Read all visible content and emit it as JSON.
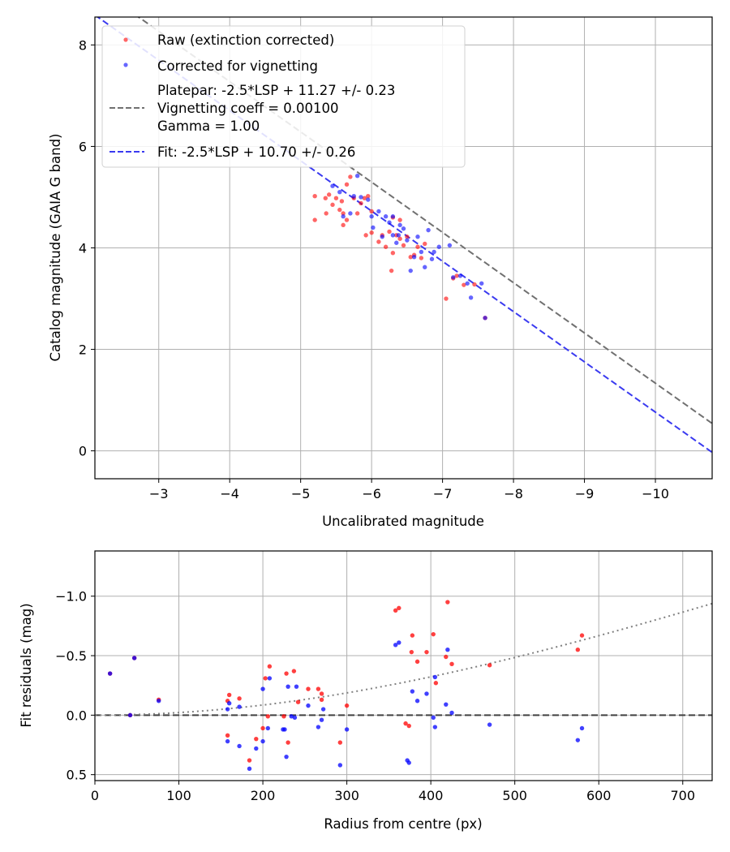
{
  "figure": "vignetting-photometry-fit",
  "chart_data": [
    {
      "type": "scatter",
      "name": "photometry",
      "xlabel": "Uncalibrated magnitude",
      "ylabel": "Catalog magnitude (GAIA G band)",
      "xlim": [
        -2.1,
        -10.8
      ],
      "ylim": [
        8.55,
        -0.55
      ],
      "xticks": [
        -3,
        -4,
        -5,
        -6,
        -7,
        -8,
        -9,
        -10
      ],
      "xtick_labels": [
        "−3",
        "−4",
        "−5",
        "−6",
        "−7",
        "−8",
        "−9",
        "−10"
      ],
      "yticks": [
        0,
        2,
        4,
        6,
        8
      ],
      "ytick_labels": [
        "0",
        "2",
        "4",
        "6",
        "8"
      ],
      "grid": true,
      "legend_position": "top-left",
      "legend": [
        {
          "label": "Raw (extinction corrected)",
          "kind": "marker",
          "color": "#ff0000"
        },
        {
          "label": "Corrected for vignetting",
          "kind": "marker",
          "color": "#0000ff"
        },
        {
          "label": "Platepar: -2.5*LSP + 11.27 +/- 0.23",
          "kind": "text-line"
        },
        {
          "label": "Vignetting coeff = 0.00100",
          "kind": "dashed",
          "color": "#707070"
        },
        {
          "label": "Gamma = 1.00",
          "kind": "text-line"
        },
        {
          "label": "Fit: -2.5*LSP + 10.70 +/- 0.26",
          "kind": "dashed",
          "color": "#3a3af0"
        }
      ],
      "lines": [
        {
          "name": "platepar-line",
          "color": "#707070",
          "style": "dashed",
          "x": [
            -2.1,
            -10.8
          ],
          "y": [
            9.16,
            0.54
          ]
        },
        {
          "name": "fit-line",
          "color": "#3a3af0",
          "style": "dashed",
          "x": [
            -2.1,
            -10.8
          ],
          "y": [
            8.59,
            -0.03
          ]
        }
      ],
      "series": [
        {
          "name": "Raw (extinction corrected)",
          "color": "#ff0000",
          "points": [
            [
              -5.2,
              4.55
            ],
            [
              -5.2,
              5.02
            ],
            [
              -5.35,
              4.98
            ],
            [
              -5.36,
              4.68
            ],
            [
              -5.4,
              5.05
            ],
            [
              -5.45,
              4.85
            ],
            [
              -5.5,
              4.98
            ],
            [
              -5.55,
              4.75
            ],
            [
              -5.58,
              4.92
            ],
            [
              -5.6,
              4.45
            ],
            [
              -5.6,
              4.68
            ],
            [
              -5.65,
              5.25
            ],
            [
              -5.65,
              4.55
            ],
            [
              -5.7,
              5.4
            ],
            [
              -5.75,
              4.98
            ],
            [
              -5.8,
              4.68
            ],
            [
              -5.85,
              4.88
            ],
            [
              -5.9,
              4.98
            ],
            [
              -5.92,
              4.25
            ],
            [
              -5.95,
              5.02
            ],
            [
              -6.0,
              4.3
            ],
            [
              -6.0,
              4.72
            ],
            [
              -6.1,
              4.12
            ],
            [
              -6.15,
              4.25
            ],
            [
              -6.2,
              4.02
            ],
            [
              -6.25,
              4.32
            ],
            [
              -6.28,
              3.55
            ],
            [
              -6.3,
              3.9
            ],
            [
              -6.3,
              4.6
            ],
            [
              -6.35,
              4.25
            ],
            [
              -6.4,
              4.18
            ],
            [
              -6.4,
              4.55
            ],
            [
              -6.45,
              4.05
            ],
            [
              -6.5,
              4.22
            ],
            [
              -6.55,
              3.82
            ],
            [
              -6.6,
              3.86
            ],
            [
              -6.65,
              4.02
            ],
            [
              -6.7,
              3.8
            ],
            [
              -6.75,
              4.08
            ],
            [
              -7.05,
              3.0
            ],
            [
              -7.15,
              3.4
            ],
            [
              -7.2,
              3.45
            ],
            [
              -7.3,
              3.27
            ],
            [
              -7.45,
              3.28
            ],
            [
              -7.6,
              2.62
            ]
          ]
        },
        {
          "name": "Corrected for vignetting",
          "color": "#0000ff",
          "points": [
            [
              -5.45,
              5.22
            ],
            [
              -5.55,
              5.1
            ],
            [
              -5.6,
              4.62
            ],
            [
              -5.7,
              4.68
            ],
            [
              -5.75,
              5.02
            ],
            [
              -5.8,
              5.42
            ],
            [
              -5.85,
              5.0
            ],
            [
              -5.95,
              4.95
            ],
            [
              -6.0,
              4.62
            ],
            [
              -6.02,
              4.4
            ],
            [
              -6.1,
              4.72
            ],
            [
              -6.15,
              4.22
            ],
            [
              -6.2,
              4.62
            ],
            [
              -6.25,
              4.5
            ],
            [
              -6.3,
              4.62
            ],
            [
              -6.3,
              4.25
            ],
            [
              -6.35,
              4.1
            ],
            [
              -6.38,
              4.25
            ],
            [
              -6.4,
              4.45
            ],
            [
              -6.45,
              4.38
            ],
            [
              -6.5,
              4.15
            ],
            [
              -6.55,
              3.55
            ],
            [
              -6.6,
              3.82
            ],
            [
              -6.65,
              4.22
            ],
            [
              -6.7,
              3.92
            ],
            [
              -6.75,
              3.62
            ],
            [
              -6.8,
              4.35
            ],
            [
              -6.85,
              3.78
            ],
            [
              -6.88,
              3.92
            ],
            [
              -6.95,
              4.02
            ],
            [
              -7.1,
              4.05
            ],
            [
              -7.15,
              3.42
            ],
            [
              -7.25,
              3.45
            ],
            [
              -7.35,
              3.3
            ],
            [
              -7.4,
              3.02
            ],
            [
              -7.55,
              3.3
            ],
            [
              -7.6,
              2.62
            ]
          ]
        }
      ]
    },
    {
      "type": "scatter",
      "name": "residuals",
      "xlabel": "Radius from centre (px)",
      "ylabel": "Fit residuals (mag)",
      "xlim": [
        0,
        735
      ],
      "ylim": [
        -1.38,
        0.55
      ],
      "xticks": [
        0,
        100,
        200,
        300,
        400,
        500,
        600,
        700
      ],
      "xtick_labels": [
        "0",
        "100",
        "200",
        "300",
        "400",
        "500",
        "600",
        "700"
      ],
      "yticks": [
        0.5,
        0.0,
        -0.5,
        -1.0
      ],
      "ytick_labels": [
        "0.5",
        "0.0",
        "−0.5",
        "−1.0"
      ],
      "grid": true,
      "lines": [
        {
          "name": "zero-line",
          "color": "#404040",
          "style": "dashed",
          "x": [
            0,
            735
          ],
          "y": [
            0,
            0
          ]
        },
        {
          "name": "vignetting-curve",
          "color": "#808080",
          "style": "dotted",
          "curve": "vignetting",
          "coeff": 0.001,
          "gamma": 1.0
        }
      ],
      "series": [
        {
          "name": "Raw (extinction corrected)",
          "color": "#ff0000",
          "points": [
            [
              18,
              -0.35
            ],
            [
              42,
              0.0
            ],
            [
              47,
              -0.48
            ],
            [
              76,
              -0.13
            ],
            [
              158,
              0.17
            ],
            [
              158,
              -0.12
            ],
            [
              160,
              -0.17
            ],
            [
              172,
              -0.14
            ],
            [
              184,
              0.38
            ],
            [
              192,
              0.2
            ],
            [
              200,
              0.11
            ],
            [
              203,
              -0.31
            ],
            [
              206,
              0.01
            ],
            [
              208,
              -0.41
            ],
            [
              225,
              0.01
            ],
            [
              228,
              -0.35
            ],
            [
              230,
              0.23
            ],
            [
              237,
              -0.37
            ],
            [
              242,
              -0.11
            ],
            [
              254,
              -0.22
            ],
            [
              266,
              -0.22
            ],
            [
              270,
              -0.18
            ],
            [
              270,
              -0.13
            ],
            [
              292,
              0.23
            ],
            [
              300,
              -0.08
            ],
            [
              358,
              -0.88
            ],
            [
              362,
              -0.9
            ],
            [
              370,
              0.07
            ],
            [
              374,
              0.09
            ],
            [
              377,
              -0.53
            ],
            [
              378,
              -0.67
            ],
            [
              384,
              -0.45
            ],
            [
              395,
              -0.53
            ],
            [
              403,
              -0.68
            ],
            [
              406,
              -0.27
            ],
            [
              418,
              -0.49
            ],
            [
              420,
              -0.95
            ],
            [
              425,
              -0.43
            ],
            [
              470,
              -0.42
            ],
            [
              575,
              -0.55
            ],
            [
              580,
              -0.67
            ]
          ]
        },
        {
          "name": "Corrected for vignetting",
          "color": "#0000ff",
          "points": [
            [
              18,
              -0.35
            ],
            [
              42,
              0.0
            ],
            [
              47,
              -0.48
            ],
            [
              76,
              -0.12
            ],
            [
              158,
              0.22
            ],
            [
              158,
              -0.05
            ],
            [
              160,
              -0.1
            ],
            [
              172,
              0.26
            ],
            [
              172,
              -0.07
            ],
            [
              184,
              0.45
            ],
            [
              192,
              0.28
            ],
            [
              200,
              0.22
            ],
            [
              200,
              -0.22
            ],
            [
              206,
              0.11
            ],
            [
              208,
              -0.31
            ],
            [
              224,
              0.12
            ],
            [
              226,
              0.12
            ],
            [
              228,
              0.35
            ],
            [
              230,
              -0.24
            ],
            [
              234,
              0.01
            ],
            [
              238,
              0.02
            ],
            [
              240,
              -0.24
            ],
            [
              254,
              -0.08
            ],
            [
              266,
              0.1
            ],
            [
              270,
              0.04
            ],
            [
              272,
              -0.05
            ],
            [
              292,
              0.42
            ],
            [
              300,
              0.12
            ],
            [
              358,
              -0.59
            ],
            [
              362,
              -0.61
            ],
            [
              372,
              0.38
            ],
            [
              374,
              0.4
            ],
            [
              378,
              -0.2
            ],
            [
              384,
              -0.12
            ],
            [
              395,
              -0.18
            ],
            [
              403,
              0.02
            ],
            [
              405,
              0.1
            ],
            [
              405,
              -0.32
            ],
            [
              418,
              -0.09
            ],
            [
              420,
              -0.55
            ],
            [
              425,
              -0.02
            ],
            [
              470,
              0.08
            ],
            [
              575,
              0.21
            ],
            [
              580,
              0.11
            ]
          ]
        }
      ]
    }
  ]
}
